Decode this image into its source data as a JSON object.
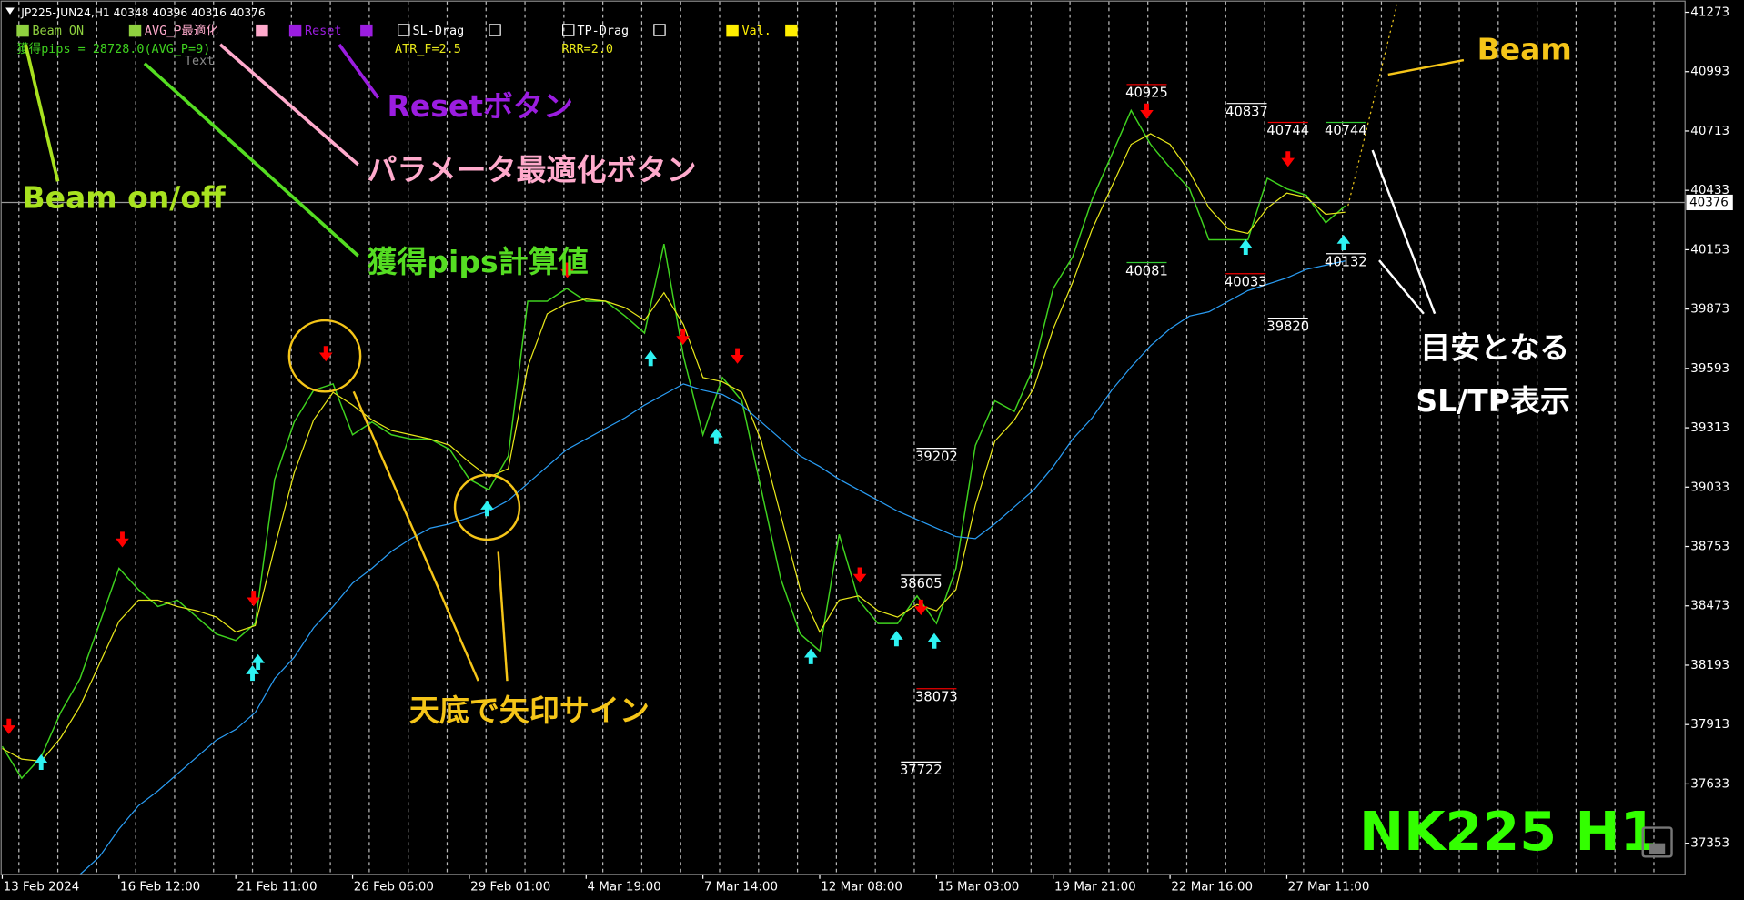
{
  "chart_data": {
    "type": "line",
    "header": "JP225-JUN24,H1  40348 40396 40316 40376",
    "buttons": [
      "Beam ON",
      "AVG_P最適化",
      "Reset",
      "SL-Drag",
      "TP-Drag",
      "Val."
    ],
    "info": [
      "獲得pips = 28728.0(AVG_P=9)",
      "ATR_F=2.5",
      "RRR=2.0",
      "Text"
    ],
    "annotations": [
      "Beam",
      "Resetボタン",
      "パラメータ最適化ボタン",
      "Beam on/off",
      "獲得pips計算値",
      "天底で矢印サイン",
      "目安となる",
      "SL/TP表示"
    ],
    "watermark": "NK225 H1",
    "sl_tp_labels": [
      40925,
      40837,
      40744,
      40744,
      40081,
      40033,
      39820,
      40132,
      39202,
      38605,
      38073,
      37722
    ],
    "current_price": 40376,
    "series": [
      {
        "name": "Price",
        "color": "#3fd21f",
        "values": [
          37810,
          37660,
          37760,
          37970,
          38130,
          38390,
          38650,
          38550,
          38470,
          38500,
          38420,
          38340,
          38310,
          38390,
          39070,
          39340,
          39490,
          39520,
          39280,
          39340,
          39280,
          39260,
          39260,
          39210,
          39070,
          39020,
          39180,
          39910,
          39910,
          39970,
          39910,
          39910,
          39840,
          39760,
          40180,
          39650,
          39280,
          39550,
          39440,
          39020,
          38600,
          38340,
          38260,
          38810,
          38500,
          38390,
          38390,
          38520,
          38390,
          38650,
          39230,
          39440,
          39390,
          39600,
          39970,
          40120,
          40390,
          40600,
          40810,
          40650,
          40540,
          40440,
          40200,
          40200,
          40200,
          40490,
          40440,
          40410,
          40280,
          40360
        ]
      },
      {
        "name": "Fast MA",
        "color": "#e8e81a",
        "values": [
          37800,
          37750,
          37740,
          37850,
          38000,
          38200,
          38400,
          38500,
          38500,
          38470,
          38450,
          38420,
          38350,
          38380,
          38750,
          39100,
          39350,
          39480,
          39420,
          39350,
          39300,
          39280,
          39260,
          39230,
          39150,
          39080,
          39120,
          39600,
          39850,
          39900,
          39920,
          39910,
          39880,
          39820,
          39950,
          39800,
          39550,
          39530,
          39480,
          39250,
          38900,
          38550,
          38350,
          38500,
          38520,
          38450,
          38420,
          38480,
          38450,
          38550,
          38950,
          39250,
          39350,
          39500,
          39780,
          40000,
          40250,
          40450,
          40650,
          40700,
          40650,
          40520,
          40350,
          40250,
          40230,
          40350,
          40420,
          40400,
          40320,
          40330
        ]
      },
      {
        "name": "Slow MA",
        "color": "#2a9df4",
        "values": [
          null,
          null,
          null,
          null,
          37206,
          37290,
          37420,
          37530,
          37600,
          37680,
          37760,
          37840,
          37890,
          37970,
          38130,
          38230,
          38370,
          38470,
          38580,
          38650,
          38730,
          38790,
          38840,
          38860,
          38890,
          38920,
          38970,
          39050,
          39130,
          39210,
          39260,
          39310,
          39360,
          39420,
          39470,
          39520,
          39490,
          39470,
          39420,
          39340,
          39260,
          39180,
          39130,
          39070,
          39020,
          38970,
          38920,
          38880,
          38840,
          38800,
          38790,
          38860,
          38940,
          39020,
          39130,
          39260,
          39360,
          39490,
          39600,
          39700,
          39780,
          39840,
          39860,
          39910,
          39960,
          39990,
          40020,
          40060,
          40080,
          40100
        ]
      }
    ],
    "xlim": [
      0,
      86.46
    ],
    "xticks": [
      {
        "value": 0,
        "label": "13 Feb 2024"
      },
      {
        "value": 6,
        "label": "16 Feb 12:00"
      },
      {
        "value": 12,
        "label": "21 Feb 11:00"
      },
      {
        "value": 18,
        "label": "26 Feb 06:00"
      },
      {
        "value": 24,
        "label": "29 Feb 01:00"
      },
      {
        "value": 30,
        "label": "4 Mar 19:00"
      },
      {
        "value": 36,
        "label": "7 Mar 14:00"
      },
      {
        "value": 42,
        "label": "12 Mar 08:00"
      },
      {
        "value": 48,
        "label": "15 Mar 03:00"
      },
      {
        "value": 54,
        "label": "19 Mar 21:00"
      },
      {
        "value": 60,
        "label": "22 Mar 16:00"
      },
      {
        "value": 66,
        "label": "27 Mar 11:00"
      }
    ],
    "ylim": [
      37206,
      41331
    ],
    "yticks": [
      41273,
      40993,
      40713,
      40433,
      40153,
      39873,
      39593,
      39313,
      39033,
      38753,
      38473,
      38193,
      37913,
      37633,
      37353
    ]
  }
}
